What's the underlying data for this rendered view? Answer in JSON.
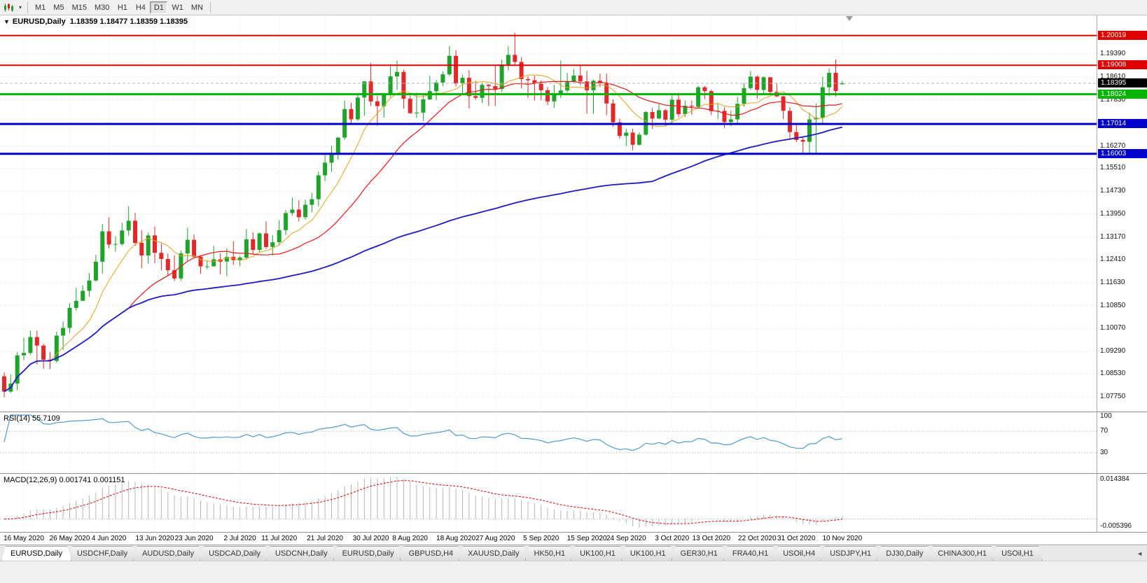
{
  "toolbar": {
    "timeframes": [
      "M1",
      "M5",
      "M15",
      "M30",
      "H1",
      "H4",
      "D1",
      "W1",
      "MN"
    ],
    "active_timeframe": "D1"
  },
  "icons": {
    "one_click_arrow": "▼",
    "chart_dropdown_caret": "▾",
    "tab_scroll_left": "◄"
  },
  "price_pane": {
    "title_symbol": "EURUSD,Daily",
    "title_ohlc": "1.18359 1.18477 1.18359 1.18395",
    "axis_labels": [
      "1.19390",
      "1.18610",
      "1.17830",
      "1.17050",
      "1.16270",
      "1.15510",
      "1.14730",
      "1.13950",
      "1.13170",
      "1.12410",
      "1.11630",
      "1.10850",
      "1.10070",
      "1.09290",
      "1.08530",
      "1.07750"
    ],
    "current_price": {
      "label": "1.18395",
      "color": "#000000"
    },
    "levels": [
      {
        "label": "1.20019",
        "value": 1.20019,
        "color": "#e00000",
        "width": 2
      },
      {
        "label": "1.19008",
        "value": 1.19008,
        "color": "#e00000",
        "width": 2
      },
      {
        "label": "1.18024",
        "value": 1.18024,
        "color": "#00b400",
        "width": 3
      },
      {
        "label": "1.17014",
        "value": 1.17014,
        "color": "#0000cd",
        "width": 3
      },
      {
        "label": "1.16003",
        "value": 1.16003,
        "color": "#0000cd",
        "width": 3
      }
    ]
  },
  "rsi_pane": {
    "label": "RSI(14) 55.7109",
    "axis_labels": [
      "100",
      "70",
      "30"
    ]
  },
  "macd_pane": {
    "label": "MACD(12,26,9) 0.001741 0.001151",
    "axis_max": "0.014384",
    "axis_min": "-0.005396"
  },
  "date_axis": [
    "16 May 2020",
    "26 May 2020",
    "4 Jun 2020",
    "13 Jun 2020",
    "23 Jun 2020",
    "2 Jul 2020",
    "11 Jul 2020",
    "21 Jul 2020",
    "30 Jul 2020",
    "8 Aug 2020",
    "18 Aug 2020",
    "27 Aug 2020",
    "5 Sep 2020",
    "15 Sep 2020",
    "24 Sep 2020",
    "3 Oct 2020",
    "13 Oct 2020",
    "22 Oct 2020",
    "31 Oct 2020",
    "10 Nov 2020"
  ],
  "tabs": {
    "items": [
      {
        "label": "EURUSD,Daily",
        "active": true
      },
      {
        "label": "USDCHF,Daily",
        "active": false
      },
      {
        "label": "AUDUSD,Daily",
        "active": false
      },
      {
        "label": "USDCAD,Daily",
        "active": false
      },
      {
        "label": "USDCNH,Daily",
        "active": false
      },
      {
        "label": "EURUSD,Daily",
        "active": false
      },
      {
        "label": "GBPUSD,H4",
        "active": false
      },
      {
        "label": "XAUUSD,Daily",
        "active": false
      },
      {
        "label": "HK50,H1",
        "active": false
      },
      {
        "label": "UK100,H1",
        "active": false
      },
      {
        "label": "UK100,H1",
        "active": false
      },
      {
        "label": "GER30,H1",
        "active": false
      },
      {
        "label": "FRA40,H1",
        "active": false
      },
      {
        "label": "USOil,H4",
        "active": false
      },
      {
        "label": "USDJPY,H1",
        "active": false
      },
      {
        "label": "DJ30,Daily",
        "active": false
      },
      {
        "label": "CHINA300,H1",
        "active": false
      },
      {
        "label": "USOil,H1",
        "active": false
      }
    ]
  },
  "chart_data": {
    "type": "candlestick",
    "symbol": "EURUSD",
    "period": "Daily",
    "last_bar": {
      "open": 1.18359,
      "high": 1.18477,
      "low": 1.18359,
      "close": 1.18395
    },
    "y_range": {
      "top": 1.207,
      "bottom": 1.073
    },
    "candle_colors": {
      "up": "#1fa32a",
      "down": "#e22828"
    },
    "moving_averages": [
      {
        "name": "MA fast",
        "window": 8,
        "color": "#e8a21d",
        "width": 1
      },
      {
        "name": "MA medium",
        "window": 20,
        "color": "#f01818",
        "width": 1.2
      },
      {
        "name": "MA slow",
        "window": 100,
        "color": "#1a1ac8",
        "width": 1.8
      }
    ],
    "rsi": {
      "period": 14,
      "value": 55.7109,
      "color": "#4e9bd4",
      "levels": [
        70,
        30
      ]
    },
    "macd": {
      "fast": 12,
      "slow": 26,
      "signal_period": 9,
      "value": 0.001741,
      "signal_value": 0.001151,
      "histogram_color": "#b4b4b4",
      "signal_color": "#e00000"
    },
    "ohlc": [
      [
        1.0845,
        1.0858,
        1.0774,
        1.0793
      ],
      [
        1.0793,
        1.0851,
        1.0789,
        1.082
      ],
      [
        1.082,
        1.0927,
        1.0797,
        1.0916
      ],
      [
        1.0916,
        1.0976,
        1.0899,
        1.0924
      ],
      [
        1.0924,
        1.0999,
        1.0918,
        1.0978
      ],
      [
        1.0978,
        1.0999,
        1.0885,
        1.0949
      ],
      [
        1.0949,
        1.0955,
        1.0871,
        1.0901
      ],
      [
        1.0901,
        1.0927,
        1.087,
        1.0897
      ],
      [
        1.0897,
        1.0996,
        1.0891,
        1.0983
      ],
      [
        1.0983,
        1.1031,
        1.0934,
        1.1009
      ],
      [
        1.1009,
        1.1093,
        1.0992,
        1.1077
      ],
      [
        1.1077,
        1.1145,
        1.1068,
        1.1101
      ],
      [
        1.1101,
        1.1154,
        1.1101,
        1.1135
      ],
      [
        1.1135,
        1.1195,
        1.1115,
        1.117
      ],
      [
        1.117,
        1.1257,
        1.1167,
        1.1234
      ],
      [
        1.1234,
        1.1362,
        1.1194,
        1.1337
      ],
      [
        1.1337,
        1.1384,
        1.1279,
        1.1292
      ],
      [
        1.1292,
        1.132,
        1.1268,
        1.1294
      ],
      [
        1.1294,
        1.1366,
        1.1288,
        1.134
      ],
      [
        1.134,
        1.1422,
        1.1322,
        1.1373
      ],
      [
        1.1373,
        1.14,
        1.1288,
        1.1298
      ],
      [
        1.1298,
        1.134,
        1.1212,
        1.1255
      ],
      [
        1.1255,
        1.1333,
        1.1227,
        1.1323
      ],
      [
        1.1323,
        1.1353,
        1.1228,
        1.1264
      ],
      [
        1.1264,
        1.1296,
        1.1204,
        1.1243
      ],
      [
        1.1243,
        1.1262,
        1.1185,
        1.1205
      ],
      [
        1.1205,
        1.1255,
        1.1168,
        1.1177
      ],
      [
        1.1177,
        1.1271,
        1.1169,
        1.1262
      ],
      [
        1.1262,
        1.1349,
        1.1233,
        1.1308
      ],
      [
        1.1308,
        1.1326,
        1.1247,
        1.1251
      ],
      [
        1.1251,
        1.1255,
        1.1193,
        1.1218
      ],
      [
        1.1218,
        1.1239,
        1.1208,
        1.1218
      ],
      [
        1.1218,
        1.1288,
        1.1218,
        1.1242
      ],
      [
        1.1242,
        1.1262,
        1.1191,
        1.1234
      ],
      [
        1.1234,
        1.1279,
        1.1185,
        1.125
      ],
      [
        1.125,
        1.1303,
        1.1223,
        1.1239
      ],
      [
        1.1239,
        1.1254,
        1.1219,
        1.1248
      ],
      [
        1.1248,
        1.1345,
        1.1241,
        1.131
      ],
      [
        1.131,
        1.1333,
        1.1259,
        1.1274
      ],
      [
        1.1274,
        1.1333,
        1.1266,
        1.133
      ],
      [
        1.133,
        1.1371,
        1.1277,
        1.1284
      ],
      [
        1.1284,
        1.1324,
        1.1255,
        1.13
      ],
      [
        1.13,
        1.1375,
        1.1291,
        1.1341
      ],
      [
        1.1341,
        1.1409,
        1.1325,
        1.1399
      ],
      [
        1.1399,
        1.1452,
        1.139,
        1.1411
      ],
      [
        1.1411,
        1.1442,
        1.137,
        1.1385
      ],
      [
        1.1385,
        1.1444,
        1.1377,
        1.1427
      ],
      [
        1.1427,
        1.1468,
        1.1402,
        1.1446
      ],
      [
        1.1446,
        1.154,
        1.1422,
        1.1527
      ],
      [
        1.1527,
        1.1601,
        1.1507,
        1.157
      ],
      [
        1.157,
        1.1627,
        1.154,
        1.1598
      ],
      [
        1.1598,
        1.1658,
        1.1581,
        1.1655
      ],
      [
        1.1655,
        1.1781,
        1.1648,
        1.1752
      ],
      [
        1.1752,
        1.1773,
        1.17,
        1.1717
      ],
      [
        1.1717,
        1.1807,
        1.1712,
        1.1791
      ],
      [
        1.1791,
        1.1847,
        1.1729,
        1.1846
      ],
      [
        1.1846,
        1.1908,
        1.1762,
        1.1778
      ],
      [
        1.1778,
        1.1797,
        1.1696,
        1.1762
      ],
      [
        1.1762,
        1.1806,
        1.1723,
        1.1803
      ],
      [
        1.1803,
        1.1905,
        1.1791,
        1.1863
      ],
      [
        1.1863,
        1.1916,
        1.1817,
        1.1878
      ],
      [
        1.1878,
        1.1886,
        1.1754,
        1.1787
      ],
      [
        1.1787,
        1.1798,
        1.1737,
        1.1738
      ],
      [
        1.1738,
        1.1808,
        1.1722,
        1.174
      ],
      [
        1.174,
        1.1806,
        1.1711,
        1.1785
      ],
      [
        1.1785,
        1.1865,
        1.1782,
        1.1813
      ],
      [
        1.1813,
        1.1851,
        1.1782,
        1.1842
      ],
      [
        1.1842,
        1.188,
        1.183,
        1.187
      ],
      [
        1.187,
        1.1966,
        1.1864,
        1.1933
      ],
      [
        1.1933,
        1.1952,
        1.1829,
        1.1839
      ],
      [
        1.1839,
        1.1869,
        1.1801,
        1.1858
      ],
      [
        1.1858,
        1.1884,
        1.1754,
        1.1796
      ],
      [
        1.1796,
        1.1848,
        1.1784,
        1.179
      ],
      [
        1.179,
        1.1841,
        1.1773,
        1.1834
      ],
      [
        1.1834,
        1.1838,
        1.1763,
        1.183
      ],
      [
        1.183,
        1.1902,
        1.1763,
        1.182
      ],
      [
        1.182,
        1.192,
        1.181,
        1.1903
      ],
      [
        1.1903,
        1.1965,
        1.1883,
        1.1936
      ],
      [
        1.1936,
        1.2011,
        1.1901,
        1.1912
      ],
      [
        1.1912,
        1.1928,
        1.1823,
        1.1854
      ],
      [
        1.1854,
        1.1864,
        1.1789,
        1.185
      ],
      [
        1.185,
        1.1865,
        1.1781,
        1.1838
      ],
      [
        1.1838,
        1.1849,
        1.1782,
        1.1816
      ],
      [
        1.1816,
        1.1827,
        1.1766,
        1.1778
      ],
      [
        1.1778,
        1.1834,
        1.1756,
        1.1802
      ],
      [
        1.1802,
        1.1917,
        1.1789,
        1.1815
      ],
      [
        1.1815,
        1.1875,
        1.1809,
        1.1846
      ],
      [
        1.1846,
        1.1888,
        1.1839,
        1.1866
      ],
      [
        1.1866,
        1.1899,
        1.1833,
        1.1846
      ],
      [
        1.1846,
        1.1882,
        1.1737,
        1.1816
      ],
      [
        1.1816,
        1.1852,
        1.1736,
        1.1848
      ],
      [
        1.1848,
        1.1872,
        1.1827,
        1.184
      ],
      [
        1.184,
        1.1872,
        1.1731,
        1.1771
      ],
      [
        1.1771,
        1.1785,
        1.1692,
        1.1707
      ],
      [
        1.1707,
        1.1719,
        1.1651,
        1.1661
      ],
      [
        1.1661,
        1.1686,
        1.1626,
        1.1672
      ],
      [
        1.1672,
        1.1685,
        1.1612,
        1.1631
      ],
      [
        1.1631,
        1.1673,
        1.1628,
        1.1665
      ],
      [
        1.1665,
        1.1745,
        1.1662,
        1.1742
      ],
      [
        1.1742,
        1.1755,
        1.1684,
        1.172
      ],
      [
        1.172,
        1.177,
        1.1717,
        1.1748
      ],
      [
        1.1748,
        1.1752,
        1.1695,
        1.1716
      ],
      [
        1.1716,
        1.1798,
        1.1706,
        1.1784
      ],
      [
        1.1784,
        1.1807,
        1.1724,
        1.1735
      ],
      [
        1.1735,
        1.1781,
        1.1725,
        1.1763
      ],
      [
        1.1763,
        1.1781,
        1.1733,
        1.176
      ],
      [
        1.176,
        1.1831,
        1.1753,
        1.1826
      ],
      [
        1.1826,
        1.183,
        1.1786,
        1.1813
      ],
      [
        1.1813,
        1.1818,
        1.1731,
        1.1745
      ],
      [
        1.1745,
        1.1771,
        1.1718,
        1.1746
      ],
      [
        1.1746,
        1.1758,
        1.1688,
        1.1708
      ],
      [
        1.1708,
        1.1747,
        1.1694,
        1.1717
      ],
      [
        1.1717,
        1.1794,
        1.1703,
        1.177
      ],
      [
        1.177,
        1.184,
        1.176,
        1.1823
      ],
      [
        1.1823,
        1.1881,
        1.1817,
        1.1862
      ],
      [
        1.1862,
        1.1866,
        1.1787,
        1.1817
      ],
      [
        1.1817,
        1.1863,
        1.1805,
        1.186
      ],
      [
        1.186,
        1.1861,
        1.1802,
        1.181
      ],
      [
        1.181,
        1.1839,
        1.1793,
        1.1795
      ],
      [
        1.1795,
        1.1797,
        1.1718,
        1.1746
      ],
      [
        1.1746,
        1.1759,
        1.165,
        1.1674
      ],
      [
        1.1674,
        1.1704,
        1.164,
        1.1647
      ],
      [
        1.1647,
        1.1656,
        1.1603,
        1.1641
      ],
      [
        1.1641,
        1.174,
        1.1602,
        1.1717
      ],
      [
        1.1717,
        1.1771,
        1.1603,
        1.1723
      ],
      [
        1.1723,
        1.1861,
        1.1702,
        1.1826
      ],
      [
        1.1826,
        1.189,
        1.1796,
        1.1875
      ],
      [
        1.1875,
        1.192,
        1.1795,
        1.1813
      ],
      [
        1.18359,
        1.18477,
        1.18359,
        1.18395
      ]
    ]
  }
}
